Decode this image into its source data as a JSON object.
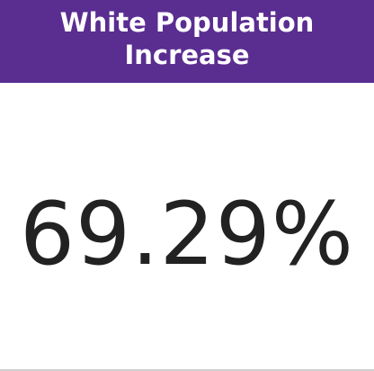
{
  "card": {
    "title_line_1": "White Population",
    "title_line_2": "Increase",
    "value": "69.29%"
  },
  "colors": {
    "header_background": "#5a2d91",
    "header_text": "#ffffff",
    "value_text": "#222222"
  }
}
